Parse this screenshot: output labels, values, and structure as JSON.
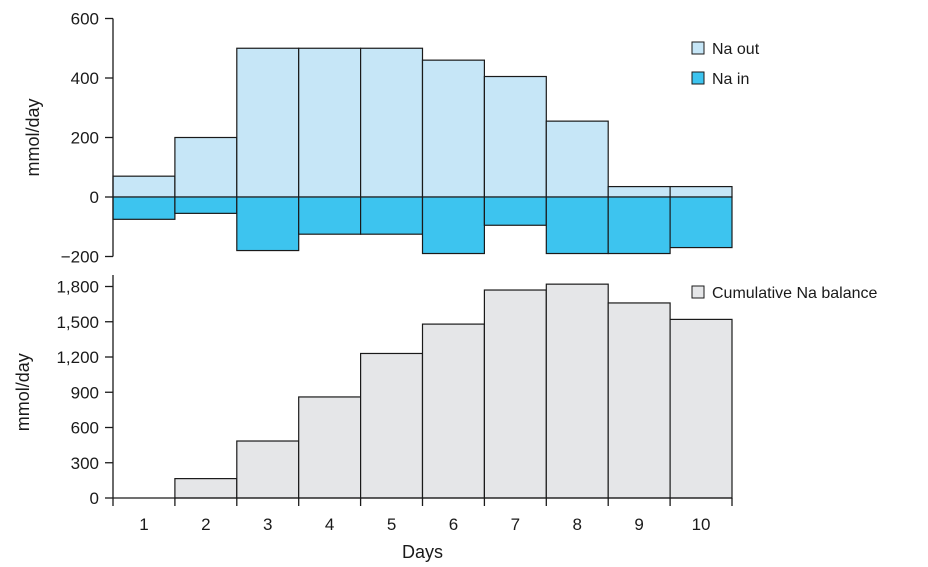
{
  "chart_data": [
    {
      "type": "bar",
      "categories": [
        "1",
        "2",
        "3",
        "4",
        "5",
        "6",
        "7",
        "8",
        "9",
        "10"
      ],
      "series": [
        {
          "name": "Na out",
          "values": [
            70,
            200,
            500,
            500,
            500,
            460,
            405,
            255,
            35,
            35
          ]
        },
        {
          "name": "Na in",
          "values": [
            -75,
            -55,
            -180,
            -125,
            -125,
            -190,
            -95,
            -190,
            -190,
            -170
          ]
        }
      ],
      "ylabel": "mmol/day",
      "ylim": [
        -200,
        600
      ],
      "yticks": [
        "600",
        "400",
        "200",
        "0",
        "−200"
      ],
      "ytick_values": [
        600,
        400,
        200,
        0,
        -200
      ],
      "legend_position": "top-right",
      "colors": {
        "Na out": "#c6e6f7",
        "Na in": "#3dc4ef"
      }
    },
    {
      "type": "bar",
      "categories": [
        "1",
        "2",
        "3",
        "4",
        "5",
        "6",
        "7",
        "8",
        "9",
        "10"
      ],
      "series": [
        {
          "name": "Cumulative Na balance",
          "values": [
            0,
            165,
            485,
            860,
            1230,
            1480,
            1770,
            1820,
            1660,
            1520
          ]
        }
      ],
      "xlabel": "Days",
      "ylabel": "mmol/day",
      "ylim": [
        0,
        1800
      ],
      "yticks": [
        "1,800",
        "1,500",
        "1,200",
        "900",
        "600",
        "300",
        "0"
      ],
      "ytick_values": [
        1800,
        1500,
        1200,
        900,
        600,
        300,
        0
      ],
      "legend_position": "top-right",
      "colors": {
        "Cumulative Na balance": "#e5e6e8"
      }
    }
  ]
}
